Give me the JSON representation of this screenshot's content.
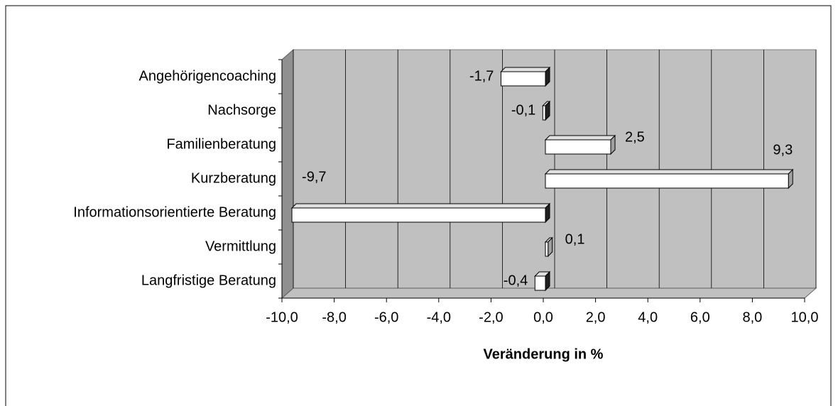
{
  "chart_data": {
    "type": "bar",
    "orientation": "horizontal",
    "x_label": "Veränderung in %",
    "categories": [
      "Angehörigencoaching",
      "Nachsorge",
      "Familienberatung",
      "Kurzberatung",
      "Informationsorientierte Beratung",
      "Vermittlung",
      "Langfristige Beratung"
    ],
    "values": [
      -1.7,
      -0.1,
      2.5,
      9.3,
      -9.7,
      0.1,
      -0.4
    ],
    "value_labels": [
      "-1,7",
      "-0,1",
      "2,5",
      "9,3",
      "-9,7",
      "0,1",
      "-0,4"
    ],
    "color": "#ffffff",
    "xlim": [
      -10,
      10
    ],
    "xticks": [
      {
        "value": -10,
        "label": "-10,0"
      },
      {
        "value": -8,
        "label": "-8,0"
      },
      {
        "value": -6,
        "label": "-6,0"
      },
      {
        "value": -4,
        "label": "-4,0"
      },
      {
        "value": -2,
        "label": "-2,0"
      },
      {
        "value": 0,
        "label": "0,0"
      },
      {
        "value": 2,
        "label": "2,0"
      },
      {
        "value": 4,
        "label": "4,0"
      },
      {
        "value": 6,
        "label": "6,0"
      },
      {
        "value": 8,
        "label": "8,0"
      },
      {
        "value": 10,
        "label": "10,0"
      }
    ],
    "grid": true
  }
}
